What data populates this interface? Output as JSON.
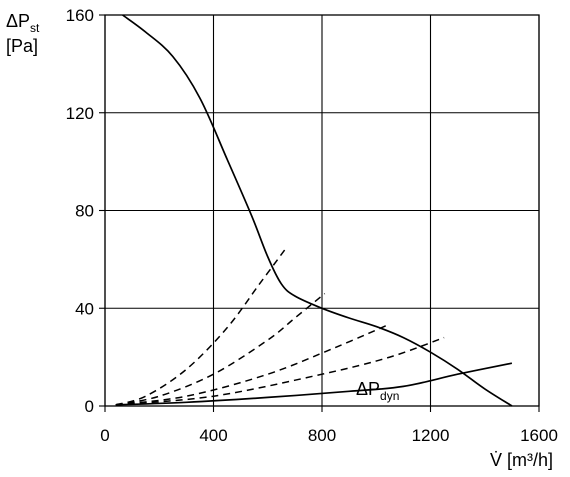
{
  "chart_data": {
    "type": "line",
    "xlim": [
      0,
      1600
    ],
    "ylim": [
      0,
      160
    ],
    "x_ticks": [
      "0",
      "400",
      "800",
      "1200",
      "1600"
    ],
    "y_ticks": [
      "0",
      "40",
      "80",
      "120",
      "160"
    ],
    "grid": true,
    "ylabel": {
      "main": "ΔP",
      "sub": "st",
      "unit": "[Pa]"
    },
    "xlabel": "V̇ [m³/h]",
    "annotation": {
      "main": "ΔP",
      "sub": "dyn"
    },
    "series": [
      {
        "style": "solid",
        "points": [
          [
            65,
            160
          ],
          [
            150,
            153
          ],
          [
            250,
            143
          ],
          [
            350,
            126
          ],
          [
            450,
            101
          ],
          [
            540,
            78
          ],
          [
            600,
            61
          ],
          [
            650,
            50
          ],
          [
            700,
            45
          ],
          [
            800,
            40
          ],
          [
            900,
            36
          ],
          [
            1000,
            32.5
          ],
          [
            1100,
            28
          ],
          [
            1200,
            22
          ],
          [
            1300,
            15
          ],
          [
            1400,
            7
          ],
          [
            1500,
            0
          ]
        ]
      },
      {
        "style": "solid",
        "points": [
          [
            40,
            0.5
          ],
          [
            300,
            1.5
          ],
          [
            600,
            3.5
          ],
          [
            900,
            6
          ],
          [
            1100,
            8
          ],
          [
            1300,
            13
          ],
          [
            1500,
            17.5
          ]
        ]
      },
      {
        "style": "dashed",
        "points": [
          [
            40,
            0.5
          ],
          [
            150,
            4
          ],
          [
            300,
            15
          ],
          [
            450,
            32
          ],
          [
            570,
            50
          ],
          [
            670,
            65
          ]
        ]
      },
      {
        "style": "dashed",
        "points": [
          [
            40,
            0.5
          ],
          [
            200,
            4
          ],
          [
            400,
            13
          ],
          [
            600,
            27
          ],
          [
            700,
            36
          ],
          [
            810,
            46
          ]
        ]
      },
      {
        "style": "dashed",
        "points": [
          [
            40,
            0.5
          ],
          [
            300,
            4
          ],
          [
            600,
            13
          ],
          [
            850,
            24
          ],
          [
            1050,
            33.5
          ]
        ]
      },
      {
        "style": "dashed",
        "points": [
          [
            40,
            0.5
          ],
          [
            400,
            4
          ],
          [
            800,
            13
          ],
          [
            1050,
            20
          ],
          [
            1250,
            28
          ]
        ]
      }
    ]
  }
}
